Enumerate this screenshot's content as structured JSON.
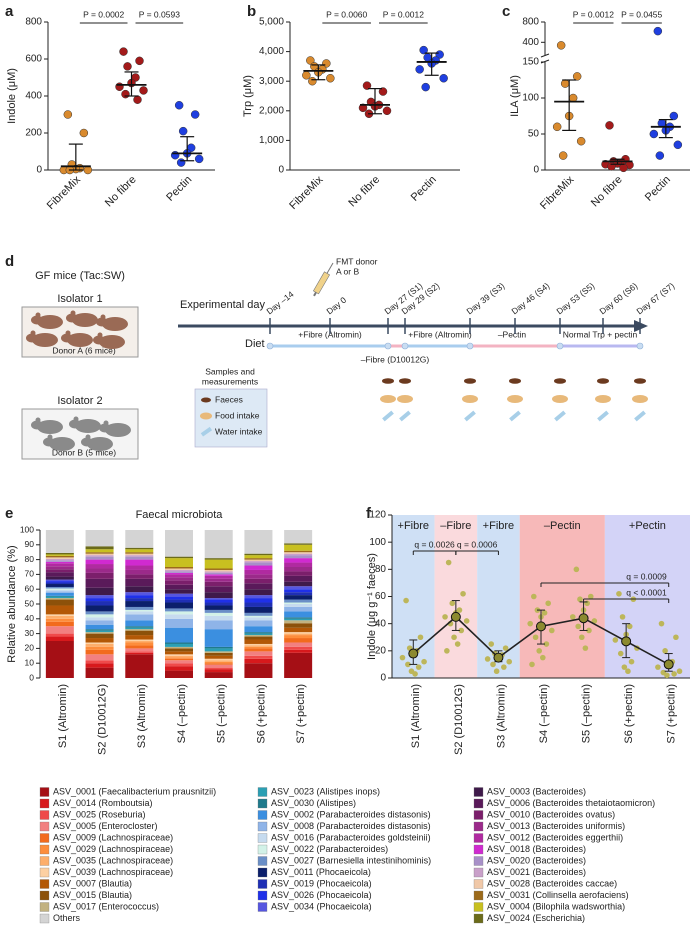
{
  "chart_data": [
    {
      "label": "a",
      "type": "dot",
      "ylabel": "Indole (μM)",
      "categories": [
        "FibreMix",
        "No fibre",
        "Pectin"
      ],
      "colors": [
        "#d98a2e",
        "#a31a1a",
        "#1f3fe0"
      ],
      "points": [
        [
          300,
          200,
          30,
          10,
          5,
          0,
          0,
          0
        ],
        [
          640,
          590,
          560,
          500,
          470,
          450,
          430,
          410,
          380
        ],
        [
          350,
          300,
          210,
          120,
          90,
          80,
          60,
          40
        ]
      ],
      "center": [
        20,
        460,
        90
      ],
      "low": [
        0,
        400,
        50
      ],
      "high": [
        140,
        530,
        180
      ],
      "ylim": [
        0,
        800
      ],
      "yticks": [
        0,
        200,
        400,
        600,
        800
      ],
      "annotations": [
        "P = 0.0002",
        "P = 0.0593"
      ]
    },
    {
      "label": "b",
      "type": "dot",
      "ylabel": "Trp (μM)",
      "categories": [
        "FibreMix",
        "No fibre",
        "Pectin"
      ],
      "colors": [
        "#d98a2e",
        "#a31a1a",
        "#1f3fe0"
      ],
      "points": [
        [
          3700,
          3600,
          3500,
          3400,
          3300,
          3200,
          3100,
          3000
        ],
        [
          2850,
          2650,
          2300,
          2200,
          2150,
          2100,
          2000,
          1900
        ],
        [
          4050,
          3900,
          3800,
          3700,
          3600,
          3400,
          3100,
          2800
        ]
      ],
      "center": [
        3350,
        2200,
        3650
      ],
      "low": [
        3050,
        1900,
        3200
      ],
      "high": [
        3550,
        2750,
        3950
      ],
      "ylim": [
        0,
        5000
      ],
      "yticks": [
        0,
        {
          "value": 1000,
          "label": "1,000"
        },
        {
          "value": 2000,
          "label": "2,000"
        },
        {
          "value": 3000,
          "label": "3,000"
        },
        {
          "value": 4000,
          "label": "4,000"
        },
        {
          "value": 5000,
          "label": "5,000"
        }
      ],
      "annotations": [
        "P = 0.0060",
        "P = 0.0012"
      ]
    },
    {
      "label": "c",
      "type": "dot",
      "ylabel": "ILA (μM)",
      "categories": [
        "FibreMix",
        "No fibre",
        "Pectin"
      ],
      "colors": [
        "#d98a2e",
        "#a31a1a",
        "#1f3fe0"
      ],
      "points": [
        [
          340,
          130,
          120,
          100,
          75,
          60,
          40,
          20
        ],
        [
          62,
          15,
          12,
          10,
          9,
          8,
          7,
          5,
          3
        ],
        [
          620,
          75,
          65,
          60,
          55,
          50,
          35,
          20
        ]
      ],
      "center": [
        95,
        12,
        60
      ],
      "low": [
        55,
        8,
        45
      ],
      "high": [
        125,
        15,
        70
      ],
      "ylim": [
        0,
        150
      ],
      "yticks": [
        0,
        50,
        100,
        150
      ],
      "ylim_upper": [
        150,
        800
      ],
      "yticks_upper": [
        400,
        800
      ],
      "annotations": [
        "P = 0.0012",
        "P = 0.0455"
      ]
    },
    {
      "label": "e",
      "type": "stacked_bar",
      "title": "Faecal microbiota",
      "ylabel": "Relative abundance (%)",
      "categories": [
        "S1 (Altromin)",
        "S2 (D10012G)",
        "S3 (Altromin)",
        "S4 (–pectin)",
        "S5 (–pectin)",
        "S6 (+pectin)",
        "S7 (+pectin)"
      ],
      "ylim": [
        0,
        100
      ],
      "yticks": [
        0,
        10,
        20,
        30,
        40,
        50,
        60,
        70,
        80,
        90,
        100
      ],
      "series": [
        {
          "name": "ASV_0001 (Faecalibacterium prausnitzii)",
          "color": "#a50f15",
          "values": [
            25,
            7,
            16,
            5,
            4,
            10,
            17
          ]
        },
        {
          "name": "ASV_0014 (Romboutsia)",
          "color": "#d7191c",
          "values": [
            3,
            3,
            1,
            3,
            2,
            3,
            2
          ]
        },
        {
          "name": "ASV_0025 (Roseburia)",
          "color": "#ef4a4a",
          "values": [
            2,
            2,
            1,
            2,
            1,
            2,
            2
          ]
        },
        {
          "name": "ASV_0005 (Enterocloster)",
          "color": "#f28080",
          "values": [
            5,
            4,
            2,
            2,
            2,
            3,
            3
          ]
        },
        {
          "name": "ASV_0009 (Lachnospiraceae)",
          "color": "#f26b1d",
          "values": [
            3,
            3,
            2,
            1,
            1,
            2,
            3
          ]
        },
        {
          "name": "ASV_0029 (Lachnospiraceae)",
          "color": "#fd8d3c",
          "values": [
            2,
            2,
            2,
            1,
            1,
            1,
            2
          ]
        },
        {
          "name": "ASV_0035 (Lachnospiraceae)",
          "color": "#fdae6b",
          "values": [
            2,
            2,
            1,
            1,
            1,
            1,
            1
          ]
        },
        {
          "name": "ASV_0039 (Lachnospiraceae)",
          "color": "#fdd0a2",
          "values": [
            1,
            1,
            1,
            1,
            1,
            1,
            1
          ]
        },
        {
          "name": "ASV_0007 (Blautia)",
          "color": "#b35806",
          "values": [
            6,
            3,
            3,
            2,
            2,
            3,
            3
          ]
        },
        {
          "name": "ASV_0015 (Blautia)",
          "color": "#8c510a",
          "values": [
            4,
            3,
            3,
            2,
            2,
            2,
            3
          ]
        },
        {
          "name": "ASV_0017 (Enterococcus)",
          "color": "#c2b280",
          "values": [
            1,
            1,
            1,
            1,
            1,
            1,
            2
          ]
        },
        {
          "name": "ASV_0023 (Alistipes inops)",
          "color": "#2b9fb3",
          "values": [
            1,
            1,
            1,
            2,
            2,
            1,
            1
          ]
        },
        {
          "name": "ASV_0030 (Alistipes)",
          "color": "#1f7a8c",
          "values": [
            0.5,
            1,
            1,
            1,
            1,
            1,
            1
          ]
        },
        {
          "name": "ASV_0002 (Parabacteroides distasonis)",
          "color": "#3b8fe0",
          "values": [
            2,
            3,
            4,
            10,
            12,
            4,
            4
          ]
        },
        {
          "name": "ASV_0008 (Parabacteroides distasonis)",
          "color": "#8fb4e8",
          "values": [
            1,
            3,
            4,
            6,
            6,
            4,
            3
          ]
        },
        {
          "name": "ASV_0016 (Parabacteroides goldsteinii)",
          "color": "#c6dbef",
          "values": [
            1,
            2,
            2,
            3,
            3,
            2,
            2
          ]
        },
        {
          "name": "ASV_0022 (Parabacteroides)",
          "color": "#d3f2e8",
          "values": [
            1,
            2,
            1,
            2,
            2,
            1,
            1
          ]
        },
        {
          "name": "ASV_0027 (Barnesiella intestinihominis)",
          "color": "#6a8fc7",
          "values": [
            1,
            2,
            2,
            2,
            2,
            2,
            2
          ]
        },
        {
          "name": "ASV_0011 (Phocaeicola)",
          "color": "#0b1f6b",
          "values": [
            2,
            4,
            4,
            4,
            3,
            4,
            3
          ]
        },
        {
          "name": "ASV_0019 (Phocaeicola)",
          "color": "#1f2fb4",
          "values": [
            1,
            3,
            2,
            2,
            2,
            3,
            2
          ]
        },
        {
          "name": "ASV_0026 (Phocaeicola)",
          "color": "#1f30e8",
          "values": [
            1,
            2,
            2,
            2,
            2,
            3,
            2
          ]
        },
        {
          "name": "ASV_0034 (Phocaeicola)",
          "color": "#5656e0",
          "values": [
            1,
            2,
            2,
            2,
            1,
            2,
            2
          ]
        },
        {
          "name": "ASV_0003 (Bacteroides)",
          "color": "#3f1a4a",
          "values": [
            2,
            5,
            4,
            3,
            4,
            4,
            3
          ]
        },
        {
          "name": "ASV_0006 (Bacteroides thetaiotaomicron)",
          "color": "#5a1a5a",
          "values": [
            3,
            6,
            5,
            3,
            4,
            4,
            4
          ]
        },
        {
          "name": "ASV_0010 (Bacteroides ovatus)",
          "color": "#7b1f6b",
          "values": [
            2,
            4,
            3,
            3,
            3,
            3,
            3
          ]
        },
        {
          "name": "ASV_0013 (Bacteroides uniformis)",
          "color": "#9b2a8a",
          "values": [
            2,
            3,
            3,
            2,
            2,
            3,
            3
          ]
        },
        {
          "name": "ASV_0012 (Bacteroides eggerthii)",
          "color": "#b02aa0",
          "values": [
            2,
            3,
            3,
            2,
            2,
            3,
            3
          ]
        },
        {
          "name": "ASV_0018 (Bacteroides)",
          "color": "#d02ad0",
          "values": [
            1,
            3,
            4,
            1,
            1,
            3,
            3
          ]
        },
        {
          "name": "ASV_0020 (Bacteroides)",
          "color": "#a890c8",
          "values": [
            1,
            2,
            2,
            1,
            1,
            2,
            2
          ]
        },
        {
          "name": "ASV_0021 (Bacteroides)",
          "color": "#c9a0c9",
          "values": [
            1,
            1,
            1,
            1,
            1,
            1,
            1
          ]
        },
        {
          "name": "ASV_0028 (Bacteroides caccae)",
          "color": "#f0c8a8",
          "values": [
            1,
            1,
            1,
            1,
            1,
            1,
            1
          ]
        },
        {
          "name": "ASV_0031 (Collinsella aerofaciens)",
          "color": "#9c6a1a",
          "values": [
            1,
            1,
            1,
            1,
            1,
            1,
            1
          ]
        },
        {
          "name": "ASV_0004 (Bilophila wadsworthia)",
          "color": "#c8c020",
          "values": [
            1,
            2,
            2,
            6,
            6,
            2,
            4
          ]
        },
        {
          "name": "ASV_0024 (Escherichia)",
          "color": "#6b6b1a",
          "values": [
            1,
            2,
            1,
            1,
            1,
            1,
            1
          ]
        },
        {
          "name": "Others",
          "color": "#d4d4d4",
          "values": [
            15.5,
            11,
            12,
            18,
            19,
            16,
            9
          ]
        }
      ]
    },
    {
      "label": "f",
      "type": "dotline",
      "ylabel": "Indole (μg g⁻¹ faeces)",
      "categories": [
        "S1 (Altromin)",
        "S2 (D10012G)",
        "S3 (Altromin)",
        "S4 (–pectin)",
        "S5 (–pectin)",
        "S6 (+pectin)",
        "S7 (+pectin)"
      ],
      "color": "#bdb65a",
      "points": [
        [
          57,
          30,
          22,
          20,
          18,
          15,
          12,
          10,
          8,
          5,
          3
        ],
        [
          85,
          62,
          55,
          50,
          48,
          45,
          42,
          40,
          35,
          30,
          25,
          20
        ],
        [
          25,
          22,
          18,
          17,
          15,
          14,
          12,
          10,
          8,
          5
        ],
        [
          60,
          55,
          50,
          48,
          45,
          40,
          35,
          30,
          25,
          20,
          15,
          10
        ],
        [
          80,
          60,
          58,
          55,
          50,
          45,
          42,
          38,
          35,
          30,
          22
        ],
        [
          62,
          58,
          45,
          38,
          32,
          28,
          22,
          18,
          12,
          8,
          5
        ],
        [
          40,
          30,
          20,
          12,
          10,
          8,
          5,
          4,
          3,
          2
        ]
      ],
      "center": [
        18,
        45,
        15,
        38,
        44,
        27,
        10
      ],
      "low": [
        10,
        35,
        12,
        25,
        35,
        15,
        5
      ],
      "high": [
        28,
        57,
        20,
        50,
        56,
        40,
        18
      ],
      "ylim": [
        0,
        120
      ],
      "yticks": [
        0,
        20,
        40,
        60,
        80,
        100,
        120
      ],
      "regions": [
        "+Fibre",
        "–Fibre",
        "+Fibre",
        "–Pectin",
        "+Pectin"
      ],
      "region_colors": [
        "#cfe0f5",
        "#fadadd",
        "#cfe0f5",
        "#f7b9b9",
        "#d3d3f7"
      ],
      "annotations": [
        "q = 0.0026",
        "q = 0.0006",
        "q = 0.0009",
        "q < 0.0001"
      ]
    }
  ],
  "diagram": {
    "label": "d",
    "mice_title": "GF mice (Tac:SW)",
    "isolators": [
      {
        "name": "Isolator 1",
        "donor": "Donor A (6 mice)"
      },
      {
        "name": "Isolator 2",
        "donor": "Donor B (5 mice)"
      }
    ],
    "fmt": [
      "FMT donor",
      "A or B"
    ],
    "timeline_label": "Experimental day",
    "days": [
      "Day –14",
      "Day 0",
      "Day 27 (S1)",
      "Day 29 (S2)",
      "Day 39 (S3)",
      "Day 46 (S4)",
      "Day 53 (S5)",
      "Day 60 (S6)",
      "Day 67 (S7)"
    ],
    "diet_label": "Diet",
    "diet": [
      "+Fibre (Altromin)",
      "+Fibre (Altromin)",
      "–Pectin",
      "Normal Trp + pectin"
    ],
    "diet_minus_fibre": "–Fibre (D10012G)",
    "samples_title": [
      "Samples and",
      "measurements"
    ],
    "samples": [
      "Faeces",
      "Food intake",
      "Water intake"
    ]
  }
}
